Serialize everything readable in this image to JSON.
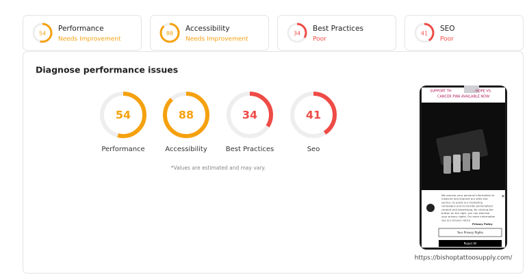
{
  "summary_cards": [
    {
      "score": 54,
      "title": "Performance",
      "status": "Needs Improvement",
      "color": "#f5a10f"
    },
    {
      "score": 88,
      "title": "Accessibility",
      "status": "Needs Improvement",
      "color": "#f5a10f"
    },
    {
      "score": 34,
      "title": "Best Practices",
      "status": "Poor",
      "color": "#ef4b46"
    },
    {
      "score": 41,
      "title": "SEO",
      "status": "Poor",
      "color": "#ef4b46"
    }
  ],
  "diagnose": {
    "title": "Diagnose performance issues",
    "gauges": [
      {
        "score": 54,
        "label": "Performance",
        "color": "#f5a10f"
      },
      {
        "score": 88,
        "label": "Accessibility",
        "color": "#f5a10f"
      },
      {
        "score": 34,
        "label": "Best Practices",
        "color": "#ef4b46"
      },
      {
        "score": 41,
        "label": "Seo",
        "color": "#ef4b46"
      }
    ],
    "note": "*Values are estimated and may vary."
  },
  "preview": {
    "banner_lines": [
      "SUPPORT TH",
      "- HOPE VS.",
      "CANCER PWA AVAILABLE NOW"
    ],
    "cookie_text": [
      "We process your personal information to",
      "measure and improve our sites and",
      "service, to assist our marketing",
      "campaigns and to provide personalised",
      "content and advertising. By clicking the",
      "button on the right, you can exercise",
      "your privacy rights. For more information",
      "see our privacy notice"
    ],
    "privacy_link": "Privacy Policy",
    "close": "×",
    "button_rights": "Your Privacy Rights",
    "button_reject": "Reject All",
    "url": "https://bishoptattoosupply.com/"
  }
}
